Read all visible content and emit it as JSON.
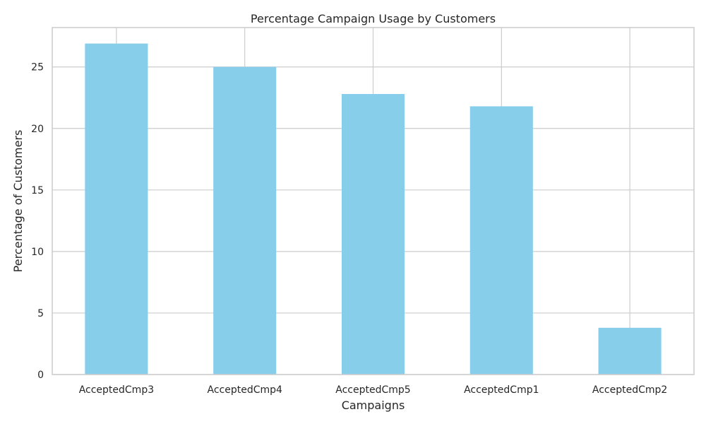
{
  "chart_data": {
    "type": "bar",
    "title": "Percentage Campaign Usage by Customers",
    "xlabel": "Campaigns",
    "ylabel": "Percentage of Customers",
    "categories": [
      "AcceptedCmp3",
      "AcceptedCmp4",
      "AcceptedCmp5",
      "AcceptedCmp1",
      "AcceptedCmp2"
    ],
    "values": [
      26.9,
      25.0,
      22.8,
      21.8,
      3.8
    ],
    "ylim": [
      0,
      28.2
    ],
    "yticks": [
      0,
      5,
      10,
      15,
      20,
      25
    ],
    "grid": true,
    "bar_color": "#87CEEB",
    "grid_color": "#cccccc",
    "text_color": "#262626"
  }
}
